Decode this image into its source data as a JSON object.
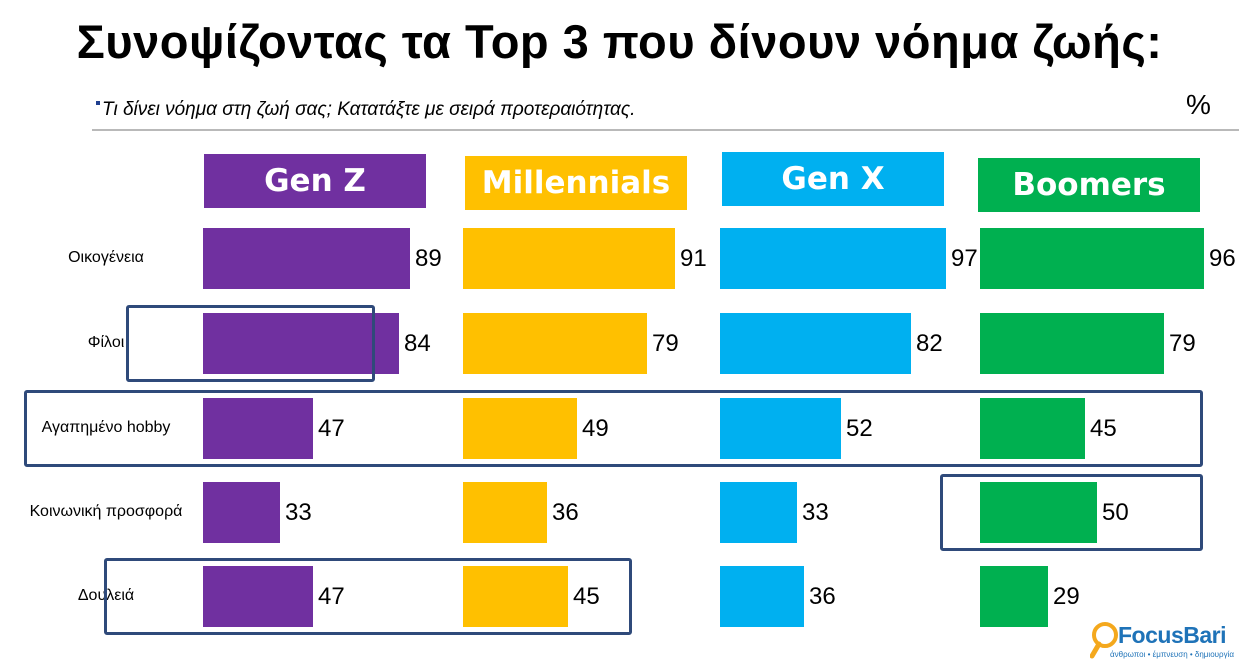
{
  "title": "Συνοψίζοντας τα Top 3 που δίνουν νόημα ζωής:",
  "subtitle": "Τι δίνει νόημα στη ζωή σας; Κατατάξτε με σειρά προτεραιότητας.",
  "unit": "%",
  "logo": {
    "name": "FocusBari",
    "tagline": "άνθρωποι • έμπνευση • δημιουργία"
  },
  "chart_data": {
    "type": "bar",
    "orientation": "horizontal",
    "categories": [
      "Οικογένεια",
      "Φίλοι",
      "Αγαπημένο hobby",
      "Κοινωνική προσφορά",
      "Δουλειά"
    ],
    "xlim": [
      0,
      100
    ],
    "series": [
      {
        "name": "Gen Z",
        "color": "#7030a0",
        "values": [
          89,
          84,
          47,
          33,
          47
        ]
      },
      {
        "name": "Millennials",
        "color": "#ffc000",
        "values": [
          91,
          79,
          49,
          36,
          45
        ]
      },
      {
        "name": "Gen X",
        "color": "#00b0f0",
        "values": [
          97,
          82,
          52,
          33,
          36
        ]
      },
      {
        "name": "Boomers",
        "color": "#00b050",
        "values": [
          96,
          79,
          45,
          50,
          29
        ]
      }
    ],
    "highlights": [
      {
        "series": [
          "Gen Z"
        ],
        "categories": [
          "Φίλοι"
        ]
      },
      {
        "series": [
          "Gen Z",
          "Millennials",
          "Gen X",
          "Boomers"
        ],
        "categories": [
          "Αγαπημένο hobby"
        ]
      },
      {
        "series": [
          "Boomers"
        ],
        "categories": [
          "Κοινωνική προσφορά"
        ]
      },
      {
        "series": [
          "Gen Z",
          "Millennials"
        ],
        "categories": [
          "Δουλειά"
        ]
      }
    ]
  }
}
